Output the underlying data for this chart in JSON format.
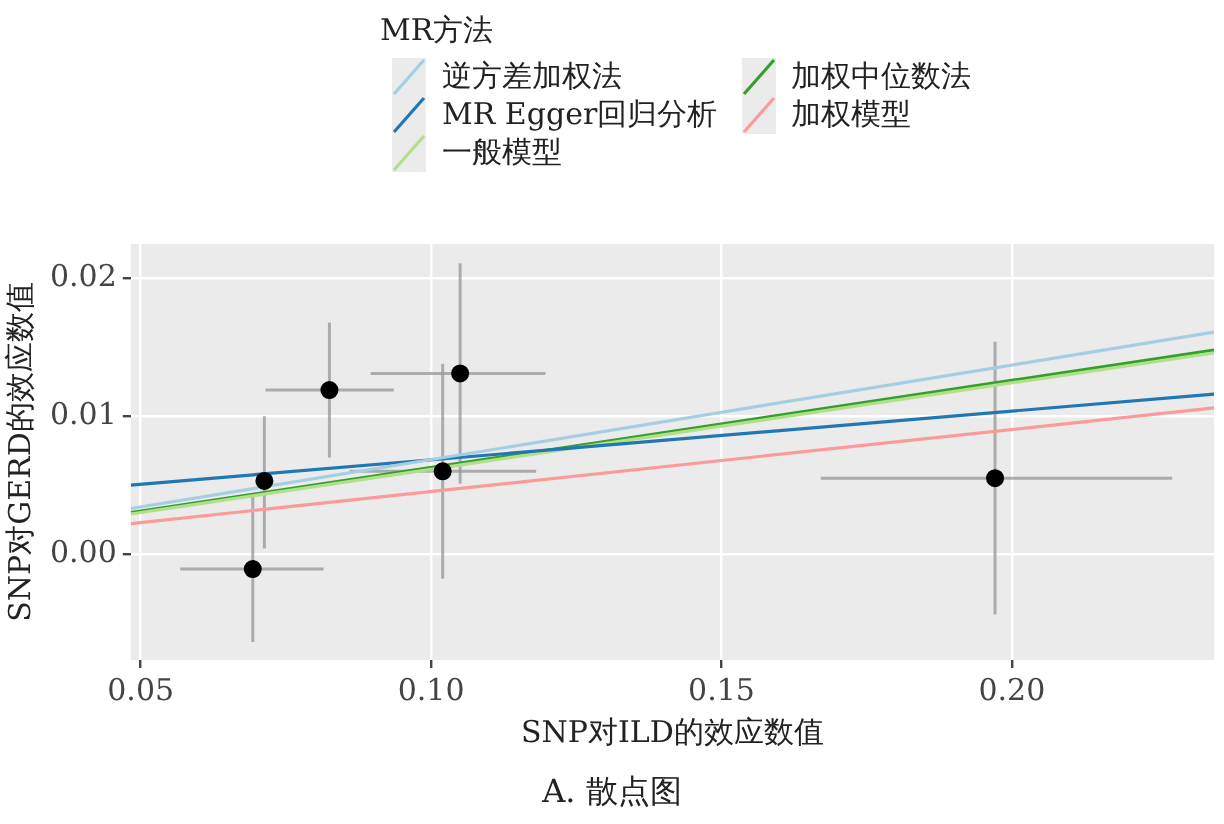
{
  "chart_data": {
    "type": "scatter",
    "xlabel": "SNP对ILD的效应数值",
    "ylabel": "SNP对GERD的效应数值",
    "legend_title": "MR方法",
    "annotations": [
      "A. 散点图"
    ],
    "xlim": [
      0.0483,
      0.2348
    ],
    "ylim": [
      -0.0077,
      0.0225
    ],
    "xticks": [
      0.05,
      {
        "value": 0.1,
        "label": "0.10"
      },
      0.15,
      {
        "value": 0.2,
        "label": "0.20"
      }
    ],
    "yticks": [
      {
        "value": 0,
        "label": "0.00"
      },
      0.01,
      0.02
    ],
    "grid": true,
    "legend": "top",
    "series": [
      {
        "color": "#000000",
        "marker": "circle",
        "x": [
          0.0693,
          0.0713,
          0.0825,
          0.102,
          0.105,
          0.1971
        ],
        "values": [
          -0.0011,
          0.0053,
          0.0119,
          0.006,
          0.0131,
          0.0055
        ],
        "errors": [
          [
            -0.0064,
            0.0044
          ],
          [
            0.0004,
            0.01
          ],
          [
            0.007,
            0.0168
          ],
          [
            -0.0018,
            0.0138
          ],
          [
            0.0051,
            0.0211
          ],
          [
            -0.0044,
            0.0154
          ]
        ],
        "xerrors": [
          [
            0.0568,
            0.0815
          ],
          null,
          [
            0.0715,
            0.0936
          ],
          [
            0.086,
            0.1181
          ],
          [
            0.0896,
            0.1197
          ],
          [
            0.1671,
            0.2276
          ]
        ]
      },
      {
        "type": "line",
        "name": "逆方差加权法",
        "color": "#a6cee3",
        "x": [
          0.0483,
          0.2348
        ],
        "values": [
          0.0033,
          0.0161
        ]
      },
      {
        "type": "line",
        "name": "MR Egger回归分析",
        "color": "#1f78b4",
        "x": [
          0.0483,
          0.2348
        ],
        "values": [
          0.005,
          0.0116
        ]
      },
      {
        "type": "line",
        "name": "一般模型",
        "color": "#b2df8a",
        "x": [
          0.0483,
          0.2348
        ],
        "values": [
          0.0029,
          0.0146
        ]
      },
      {
        "type": "line",
        "name": "加权中位数法",
        "color": "#33a02c",
        "x": [
          0.0483,
          0.2348
        ],
        "values": [
          0.003,
          0.0148
        ]
      },
      {
        "type": "line",
        "name": "加权模型",
        "color": "#fb9a99",
        "x": [
          0.0483,
          0.2348
        ],
        "values": [
          0.0022,
          0.0106
        ]
      }
    ]
  }
}
